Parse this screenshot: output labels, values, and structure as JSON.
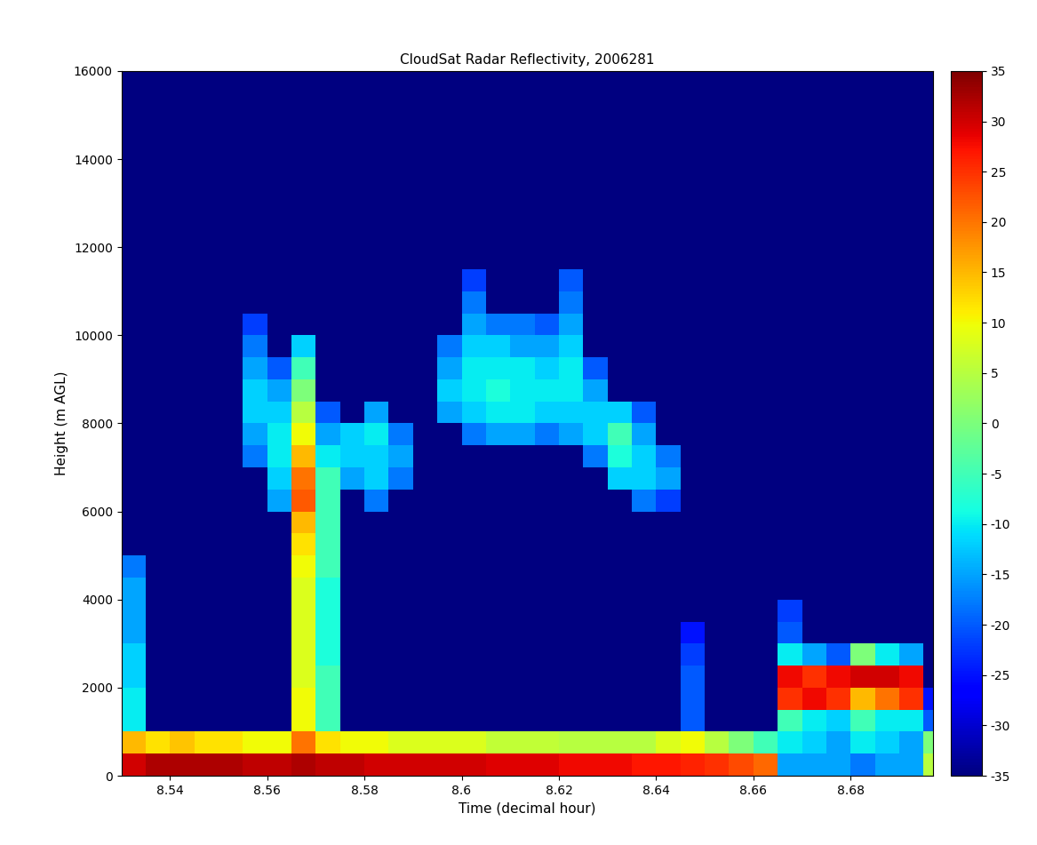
{
  "chart_data": {
    "type": "heatmap",
    "title": "CloudSat Radar Reflectivity, 2006281",
    "x_label": "Time (decimal hour)",
    "y_label": "Height (m AGL)",
    "xlim": [
      8.53,
      8.697
    ],
    "ylim": [
      0,
      16000
    ],
    "xticks": [
      8.54,
      8.56,
      8.58,
      8.6,
      8.62,
      8.64,
      8.66,
      8.68
    ],
    "yticks": [
      0,
      2000,
      4000,
      6000,
      8000,
      10000,
      12000,
      14000,
      16000
    ],
    "x": [
      8.5325,
      8.5375,
      8.5425,
      8.5475,
      8.5525,
      8.5575,
      8.5625,
      8.5675,
      8.5725,
      8.5775,
      8.5825,
      8.5875,
      8.5925,
      8.5975,
      8.6025,
      8.6075,
      8.6125,
      8.6175,
      8.6225,
      8.6275,
      8.6325,
      8.6375,
      8.6425,
      8.6475,
      8.6525,
      8.6575,
      8.6625,
      8.6675,
      8.6725,
      8.6775,
      8.6825,
      8.6875,
      8.6925,
      8.6975
    ],
    "y": [
      250,
      750,
      1250,
      1750,
      2250,
      2750,
      3250,
      3750,
      4250,
      4750,
      5250,
      5750,
      6250,
      6750,
      7250,
      7750,
      8250,
      8750,
      9250,
      9750,
      10250,
      10750,
      11250,
      11750,
      12250,
      12750,
      13250,
      13750,
      14250,
      14750,
      15250,
      15750
    ],
    "cells": [
      [
        30,
        32,
        32,
        32,
        32,
        31,
        31,
        32,
        31,
        31,
        30,
        30,
        30,
        30,
        30,
        29,
        29,
        29,
        28,
        28,
        28,
        27,
        27,
        26,
        25,
        23,
        21,
        -15,
        -15,
        -15,
        -18,
        -15,
        -15,
        5
      ],
      [
        15,
        12,
        14,
        12,
        12,
        10,
        10,
        20,
        12,
        10,
        10,
        8,
        8,
        8,
        8,
        6,
        6,
        6,
        5,
        5,
        5,
        5,
        8,
        10,
        5,
        0,
        -5,
        -10,
        -12,
        -15,
        -10,
        -12,
        -15,
        0
      ],
      [
        -10,
        -35,
        -35,
        -35,
        -35,
        -35,
        -35,
        10,
        -5,
        -35,
        -35,
        -35,
        -35,
        -35,
        -35,
        -35,
        -35,
        -35,
        -35,
        -35,
        -35,
        -35,
        -35,
        -20,
        -35,
        -35,
        -35,
        -5,
        -10,
        -12,
        -5,
        -10,
        -10,
        -20
      ],
      [
        -10,
        -35,
        -35,
        -35,
        -35,
        -35,
        -35,
        10,
        -5,
        -35,
        -35,
        -35,
        -35,
        -35,
        -35,
        -35,
        -35,
        -35,
        -35,
        -35,
        -35,
        -35,
        -35,
        -20,
        -35,
        -35,
        -35,
        25,
        28,
        25,
        15,
        20,
        25,
        -25
      ],
      [
        -12,
        -35,
        -35,
        -35,
        -35,
        -35,
        -35,
        8,
        -5,
        -35,
        -35,
        -35,
        -35,
        -35,
        -35,
        -35,
        -35,
        -35,
        -35,
        -35,
        -35,
        -35,
        -35,
        -20,
        -35,
        -35,
        -35,
        28,
        25,
        28,
        30,
        30,
        28,
        -35
      ],
      [
        -12,
        -35,
        -35,
        -35,
        -35,
        -35,
        -35,
        8,
        -8,
        -35,
        -35,
        -35,
        -35,
        -35,
        -35,
        -35,
        -35,
        -35,
        -35,
        -35,
        -35,
        -35,
        -35,
        -22,
        -35,
        -35,
        -35,
        -10,
        -15,
        -20,
        0,
        -10,
        -15,
        -35
      ],
      [
        -15,
        -35,
        -35,
        -35,
        -35,
        -35,
        -35,
        8,
        -8,
        -35,
        -35,
        -35,
        -35,
        -35,
        -35,
        -35,
        -35,
        -35,
        -35,
        -35,
        -35,
        -35,
        -35,
        -25,
        -35,
        -35,
        -35,
        -20,
        -35,
        -35,
        -35,
        -35,
        -35,
        -35
      ],
      [
        -15,
        -35,
        -35,
        -35,
        -35,
        -35,
        -35,
        8,
        -8,
        -35,
        -35,
        -35,
        -35,
        -35,
        -35,
        -35,
        -35,
        -35,
        -35,
        -35,
        -35,
        -35,
        -35,
        -35,
        -35,
        -35,
        -35,
        -22,
        -35,
        -35,
        -35,
        -35,
        -35,
        -35
      ],
      [
        -15,
        -35,
        -35,
        -35,
        -35,
        -35,
        -35,
        8,
        -8,
        -35,
        -35,
        -35,
        -35,
        -35,
        -35,
        -35,
        -35,
        -35,
        -35,
        -35,
        -35,
        -35,
        -35,
        -35,
        -35,
        -35,
        -35,
        -35,
        -35,
        -35,
        -35,
        -35,
        -35,
        -35
      ],
      [
        -18,
        -35,
        -35,
        -35,
        -35,
        -35,
        -35,
        10,
        -5,
        -35,
        -35,
        -35,
        -35,
        -35,
        -35,
        -35,
        -35,
        -35,
        -35,
        -35,
        -35,
        -35,
        -35,
        -35,
        -35,
        -35,
        -35,
        -35,
        -35,
        -35,
        -35,
        -35,
        -35,
        -35
      ],
      [
        -35,
        -35,
        -35,
        -35,
        -35,
        -35,
        -35,
        12,
        -5,
        -35,
        -35,
        -35,
        -35,
        -35,
        -35,
        -35,
        -35,
        -35,
        -35,
        -35,
        -35,
        -35,
        -35,
        -35,
        -35,
        -35,
        -35,
        -35,
        -35,
        -35,
        -35,
        -35,
        -35,
        -35
      ],
      [
        -35,
        -35,
        -35,
        -35,
        -35,
        -35,
        -35,
        15,
        -5,
        -35,
        -35,
        -35,
        -35,
        -35,
        -35,
        -35,
        -35,
        -35,
        -35,
        -35,
        -35,
        -35,
        -35,
        -35,
        -35,
        -35,
        -35,
        -35,
        -35,
        -35,
        -35,
        -35,
        -35,
        -35
      ],
      [
        -35,
        -35,
        -35,
        -35,
        -35,
        -35,
        -15,
        22,
        -5,
        -35,
        -18,
        -35,
        -35,
        -35,
        -35,
        -35,
        -35,
        -35,
        -35,
        -35,
        -35,
        -18,
        -22,
        -35,
        -35,
        -35,
        -35,
        -35,
        -35,
        -35,
        -35,
        -35,
        -35,
        -35
      ],
      [
        -35,
        -35,
        -35,
        -35,
        -35,
        -35,
        -12,
        20,
        -5,
        -15,
        -12,
        -18,
        -35,
        -35,
        -35,
        -35,
        -35,
        -35,
        -35,
        -35,
        -12,
        -12,
        -15,
        -35,
        -35,
        -35,
        -35,
        -35,
        -35,
        -35,
        -35,
        -35,
        -35,
        -35
      ],
      [
        -35,
        -35,
        -35,
        -35,
        -35,
        -18,
        -10,
        15,
        -10,
        -12,
        -12,
        -15,
        -35,
        -35,
        -35,
        -35,
        -35,
        -35,
        -35,
        -18,
        -8,
        -12,
        -18,
        -35,
        -35,
        -35,
        -35,
        -35,
        -35,
        -35,
        -35,
        -35,
        -35,
        -35
      ],
      [
        -35,
        -35,
        -35,
        -35,
        -35,
        -15,
        -10,
        10,
        -15,
        -12,
        -10,
        -18,
        -35,
        -35,
        -18,
        -15,
        -15,
        -18,
        -15,
        -12,
        -5,
        -15,
        -35,
        -35,
        -35,
        -35,
        -35,
        -35,
        -35,
        -35,
        -35,
        -35,
        -35,
        -35
      ],
      [
        -35,
        -35,
        -35,
        -35,
        -35,
        -12,
        -12,
        5,
        -20,
        -35,
        -15,
        -35,
        -35,
        -15,
        -12,
        -10,
        -10,
        -12,
        -12,
        -12,
        -12,
        -20,
        -35,
        -35,
        -35,
        -35,
        -35,
        -35,
        -35,
        -35,
        -35,
        -35,
        -35,
        -35
      ],
      [
        -35,
        -35,
        -35,
        -35,
        -35,
        -12,
        -15,
        0,
        -35,
        -35,
        -35,
        -35,
        -35,
        -12,
        -10,
        -8,
        -10,
        -10,
        -10,
        -15,
        -35,
        -35,
        -35,
        -35,
        -35,
        -35,
        -35,
        -35,
        -35,
        -35,
        -35,
        -35,
        -35,
        -35
      ],
      [
        -35,
        -35,
        -35,
        -35,
        -35,
        -15,
        -20,
        -5,
        -35,
        -35,
        -35,
        -35,
        -35,
        -15,
        -10,
        -10,
        -10,
        -12,
        -10,
        -20,
        -35,
        -35,
        -35,
        -35,
        -35,
        -35,
        -35,
        -35,
        -35,
        -35,
        -35,
        -35,
        -35,
        -35
      ],
      [
        -35,
        -35,
        -35,
        -35,
        -35,
        -18,
        -35,
        -12,
        -35,
        -35,
        -35,
        -35,
        -35,
        -18,
        -12,
        -12,
        -15,
        -15,
        -12,
        -35,
        -35,
        -35,
        -35,
        -35,
        -35,
        -35,
        -35,
        -35,
        -35,
        -35,
        -35,
        -35,
        -35,
        -35
      ],
      [
        -35,
        -35,
        -35,
        -35,
        -35,
        -22,
        -35,
        -35,
        -35,
        -35,
        -35,
        -35,
        -35,
        -35,
        -15,
        -18,
        -18,
        -20,
        -15,
        -35,
        -35,
        -35,
        -35,
        -35,
        -35,
        -35,
        -35,
        -35,
        -35,
        -35,
        -35,
        -35,
        -35,
        -35
      ],
      [
        -35,
        -35,
        -35,
        -35,
        -35,
        -35,
        -35,
        -35,
        -35,
        -35,
        -35,
        -35,
        -35,
        -35,
        -18,
        -35,
        -35,
        -35,
        -18,
        -35,
        -35,
        -35,
        -35,
        -35,
        -35,
        -35,
        -35,
        -35,
        -35,
        -35,
        -35,
        -35,
        -35,
        -35
      ],
      [
        -35,
        -35,
        -35,
        -35,
        -35,
        -35,
        -35,
        -35,
        -35,
        -35,
        -35,
        -35,
        -35,
        -35,
        -22,
        -35,
        -35,
        -35,
        -20,
        -35,
        -35,
        -35,
        -35,
        -35,
        -35,
        -35,
        -35,
        -35,
        -35,
        -35,
        -35,
        -35,
        -35,
        -35
      ],
      [
        -35,
        -35,
        -35,
        -35,
        -35,
        -35,
        -35,
        -35,
        -35,
        -35,
        -35,
        -35,
        -35,
        -35,
        -35,
        -35,
        -35,
        -35,
        -35,
        -35,
        -35,
        -35,
        -35,
        -35,
        -35,
        -35,
        -35,
        -35,
        -35,
        -35,
        -35,
        -35,
        -35,
        -35
      ],
      [
        -35,
        -35,
        -35,
        -35,
        -35,
        -35,
        -35,
        -35,
        -35,
        -35,
        -35,
        -35,
        -35,
        -35,
        -35,
        -35,
        -35,
        -35,
        -35,
        -35,
        -35,
        -35,
        -35,
        -35,
        -35,
        -35,
        -35,
        -35,
        -35,
        -35,
        -35,
        -35,
        -35,
        -35
      ],
      [
        -35,
        -35,
        -35,
        -35,
        -35,
        -35,
        -35,
        -35,
        -35,
        -35,
        -35,
        -35,
        -35,
        -35,
        -35,
        -35,
        -35,
        -35,
        -35,
        -35,
        -35,
        -35,
        -35,
        -35,
        -35,
        -35,
        -35,
        -35,
        -35,
        -35,
        -35,
        -35,
        -35,
        -35
      ],
      [
        -35,
        -35,
        -35,
        -35,
        -35,
        -35,
        -35,
        -35,
        -35,
        -35,
        -35,
        -35,
        -35,
        -35,
        -35,
        -35,
        -35,
        -35,
        -35,
        -35,
        -35,
        -35,
        -35,
        -35,
        -35,
        -35,
        -35,
        -35,
        -35,
        -35,
        -35,
        -35,
        -35,
        -35
      ],
      [
        -35,
        -35,
        -35,
        -35,
        -35,
        -35,
        -35,
        -35,
        -35,
        -35,
        -35,
        -35,
        -35,
        -35,
        -35,
        -35,
        -35,
        -35,
        -35,
        -35,
        -35,
        -35,
        -35,
        -35,
        -35,
        -35,
        -35,
        -35,
        -35,
        -35,
        -35,
        -35,
        -35,
        -35
      ],
      [
        -35,
        -35,
        -35,
        -35,
        -35,
        -35,
        -35,
        -35,
        -35,
        -35,
        -35,
        -35,
        -35,
        -35,
        -35,
        -35,
        -35,
        -35,
        -35,
        -35,
        -35,
        -35,
        -35,
        -35,
        -35,
        -35,
        -35,
        -35,
        -35,
        -35,
        -35,
        -35,
        -35,
        -35
      ],
      [
        -35,
        -35,
        -35,
        -35,
        -35,
        -35,
        -35,
        -35,
        -35,
        -35,
        -35,
        -35,
        -35,
        -35,
        -35,
        -35,
        -35,
        -35,
        -35,
        -35,
        -35,
        -35,
        -35,
        -35,
        -35,
        -35,
        -35,
        -35,
        -35,
        -35,
        -35,
        -35,
        -35,
        -35
      ],
      [
        -35,
        -35,
        -35,
        -35,
        -35,
        -35,
        -35,
        -35,
        -35,
        -35,
        -35,
        -35,
        -35,
        -35,
        -35,
        -35,
        -35,
        -35,
        -35,
        -35,
        -35,
        -35,
        -35,
        -35,
        -35,
        -35,
        -35,
        -35,
        -35,
        -35,
        -35,
        -35,
        -35,
        -35
      ],
      [
        -35,
        -35,
        -35,
        -35,
        -35,
        -35,
        -35,
        -35,
        -35,
        -35,
        -35,
        -35,
        -35,
        -35,
        -35,
        -35,
        -35,
        -35,
        -35,
        -35,
        -35,
        -35,
        -35,
        -35,
        -35,
        -35,
        -35,
        -35,
        -35,
        -35,
        -35,
        -35,
        -35,
        -35
      ]
    ],
    "colorbar": {
      "range": [
        -35,
        35
      ],
      "ticks": [
        -35,
        -30,
        -25,
        -20,
        -15,
        -10,
        -5,
        0,
        5,
        10,
        15,
        20,
        25,
        30,
        35
      ]
    }
  }
}
